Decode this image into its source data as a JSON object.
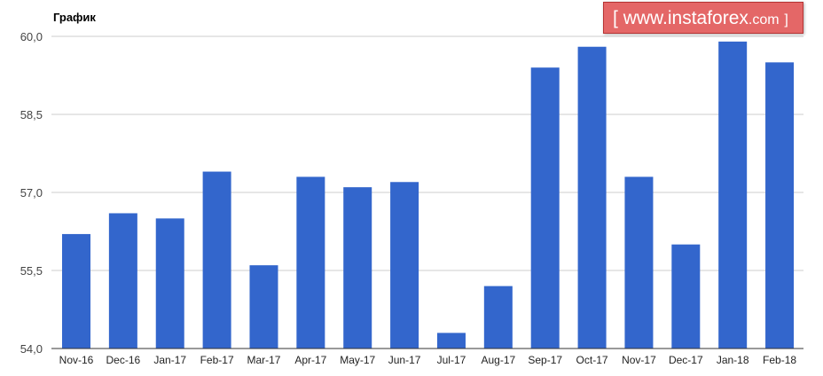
{
  "chart_data": {
    "type": "bar",
    "title": "График",
    "categories": [
      "Nov-16",
      "Dec-16",
      "Jan-17",
      "Feb-17",
      "Mar-17",
      "Apr-17",
      "May-17",
      "Jun-17",
      "Jul-17",
      "Aug-17",
      "Sep-17",
      "Oct-17",
      "Nov-17",
      "Dec-17",
      "Jan-18",
      "Feb-18"
    ],
    "values": [
      56.2,
      56.6,
      56.5,
      57.4,
      55.6,
      57.3,
      57.1,
      57.2,
      54.3,
      55.2,
      59.4,
      59.8,
      57.3,
      56.0,
      59.9,
      59.5
    ],
    "ylim": [
      54.0,
      60.0
    ],
    "yticks": [
      54.0,
      55.5,
      57.0,
      58.5,
      60.0
    ],
    "ytick_labels": [
      "54,0",
      "55,5",
      "57,0",
      "58,5",
      "60,0"
    ],
    "grid": true,
    "bar_color": "#3366cc",
    "grid_color": "#cccccc"
  },
  "watermark": {
    "open": "[",
    "site": "www.instaforex",
    "tld": ".com",
    "close": "]"
  }
}
